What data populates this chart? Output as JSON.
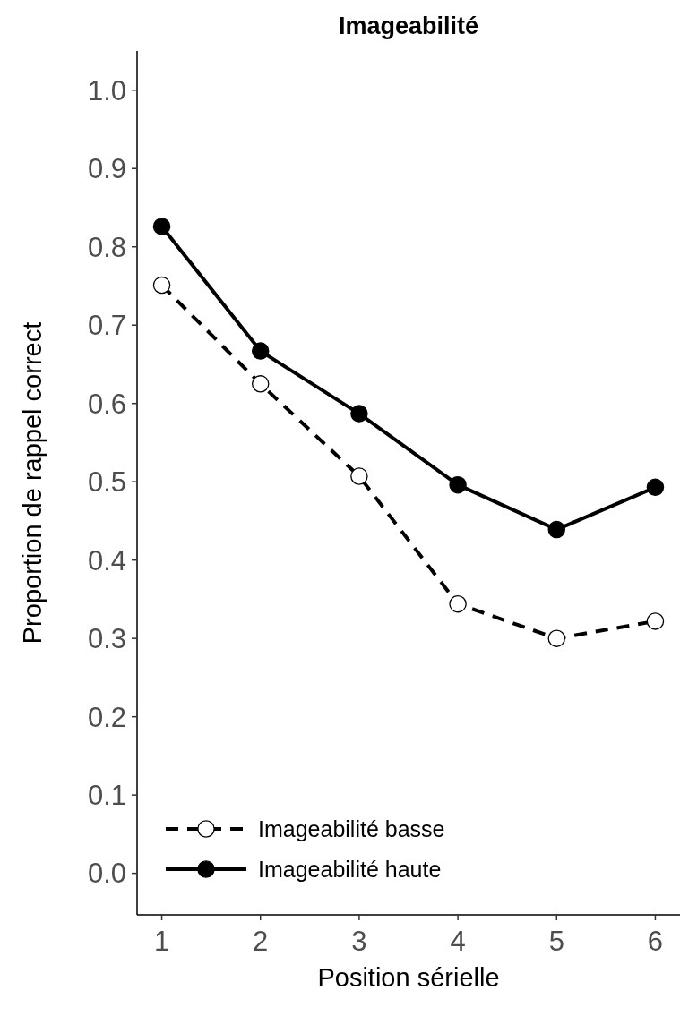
{
  "chart_data": {
    "type": "line",
    "title": "Imageabilité",
    "xlabel": "Position sérielle",
    "ylabel": "Proportion de rappel correct",
    "x": [
      1,
      2,
      3,
      4,
      5,
      6
    ],
    "xlim": [
      0.75,
      6.25
    ],
    "xticks": [
      1,
      2,
      3,
      4,
      5,
      6
    ],
    "ylim": [
      -0.053,
      1.05
    ],
    "yticks": [
      {
        "value": 0,
        "label": "0.0"
      },
      0.1,
      0.2,
      0.3,
      0.4,
      0.5,
      0.6,
      0.7,
      0.8,
      0.9,
      {
        "value": 1,
        "label": "1.0"
      }
    ],
    "series": [
      {
        "name": "Imageabilité basse",
        "color": "#000000",
        "line_style": "dashed",
        "values": [
          0.751,
          0.625,
          0.507,
          0.344,
          0.3,
          0.322
        ]
      },
      {
        "name": "Imageabilité haute",
        "color": "#000000",
        "line_style": "solid",
        "values": [
          0.826,
          0.667,
          0.587,
          0.496,
          0.439,
          0.493
        ]
      }
    ],
    "marker": "circle",
    "grid": false,
    "legend": "bottom left"
  }
}
